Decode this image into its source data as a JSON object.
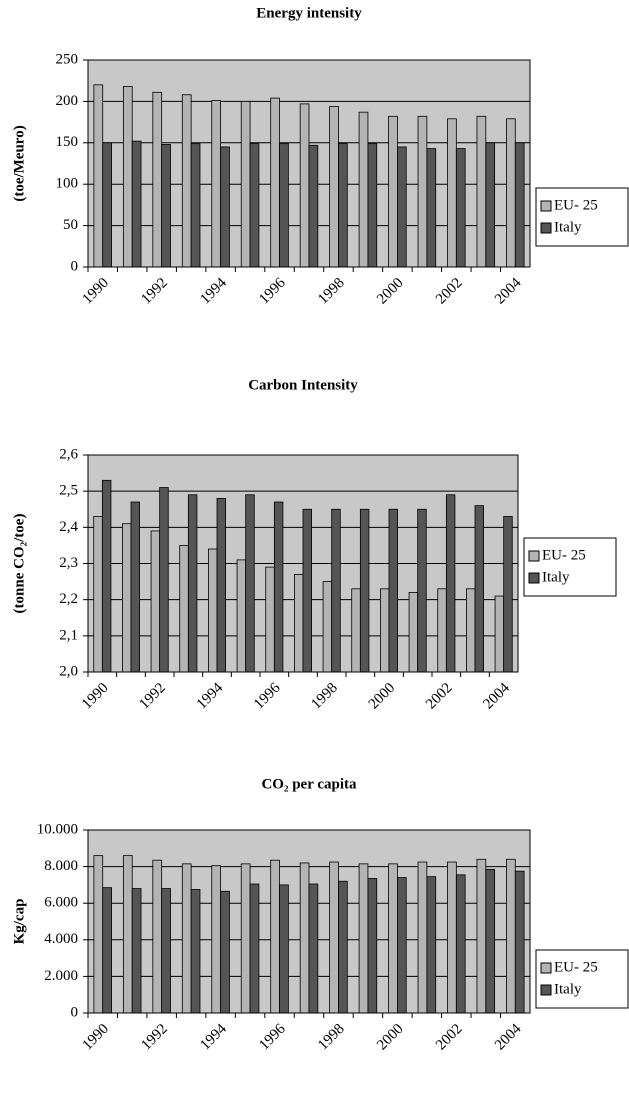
{
  "chart_data": [
    {
      "type": "bar",
      "title": "Energy intensity",
      "y_label": "(toe/Meuro)",
      "categories": [
        "1990",
        null,
        "1992",
        null,
        "1994",
        null,
        "1996",
        null,
        "1998",
        null,
        "2000",
        null,
        "2002",
        null,
        "2004"
      ],
      "series": [
        {
          "name": "EU- 25",
          "color": "#b4b4b4",
          "values": [
            220,
            218,
            211,
            208,
            201,
            200,
            204,
            197,
            194,
            187,
            182,
            182,
            179,
            182,
            179
          ]
        },
        {
          "name": "Italy",
          "color": "#555555",
          "values": [
            150,
            152,
            148,
            149,
            145,
            149,
            149,
            147,
            149,
            149,
            145,
            143,
            143,
            150,
            150
          ]
        }
      ],
      "ylim": [
        0,
        250
      ],
      "yticks": [
        0,
        50,
        100,
        150,
        200,
        250
      ],
      "grid": true
    },
    {
      "type": "bar",
      "title": "Carbon Intensity",
      "y_label": "(tonne CO₂/toe)",
      "categories": [
        "1990",
        null,
        "1992",
        null,
        "1994",
        null,
        "1996",
        null,
        "1998",
        null,
        "2000",
        null,
        "2002",
        null,
        "2004"
      ],
      "series": [
        {
          "name": "EU- 25",
          "color": "#b4b4b4",
          "values": [
            2.43,
            2.41,
            2.39,
            2.35,
            2.34,
            2.31,
            2.29,
            2.27,
            2.25,
            2.23,
            2.23,
            2.22,
            2.23,
            2.23,
            2.21
          ]
        },
        {
          "name": "Italy",
          "color": "#555555",
          "values": [
            2.53,
            2.47,
            2.51,
            2.49,
            2.48,
            2.49,
            2.47,
            2.45,
            2.45,
            2.45,
            2.45,
            2.45,
            2.49,
            2.46,
            2.43
          ]
        }
      ],
      "ylim": [
        2.0,
        2.6
      ],
      "yticks": [
        {
          "value": 2.0,
          "label": "2,0"
        },
        {
          "value": 2.1,
          "label": "2,1"
        },
        {
          "value": 2.2,
          "label": "2,2"
        },
        {
          "value": 2.3,
          "label": "2,3"
        },
        {
          "value": 2.4,
          "label": "2,4"
        },
        {
          "value": 2.5,
          "label": "2,5"
        },
        {
          "value": 2.6,
          "label": "2,6"
        }
      ],
      "grid": true
    },
    {
      "type": "bar",
      "title": "CO₂ per capita",
      "y_label": "Kg/cap",
      "categories": [
        "1990",
        null,
        "1992",
        null,
        "1994",
        null,
        "1996",
        null,
        "1998",
        null,
        "2000",
        null,
        "2002",
        null,
        "2004"
      ],
      "series": [
        {
          "name": "EU- 25",
          "color": "#b4b4b4",
          "values": [
            8600,
            8600,
            8350,
            8150,
            8050,
            8150,
            8350,
            8200,
            8250,
            8150,
            8150,
            8250,
            8250,
            8400,
            8400
          ]
        },
        {
          "name": "Italy",
          "color": "#555555",
          "values": [
            6850,
            6800,
            6800,
            6750,
            6650,
            7050,
            7000,
            7050,
            7200,
            7350,
            7400,
            7450,
            7550,
            7850,
            7750
          ]
        }
      ],
      "ylim": [
        0,
        10000
      ],
      "yticks": [
        0,
        {
          "value": 2000,
          "label": "2.000"
        },
        {
          "value": 4000,
          "label": "4.000"
        },
        {
          "value": 6000,
          "label": "6.000"
        },
        {
          "value": 8000,
          "label": "8.000"
        },
        {
          "value": 10000,
          "label": "10.000"
        }
      ],
      "grid": true
    }
  ]
}
